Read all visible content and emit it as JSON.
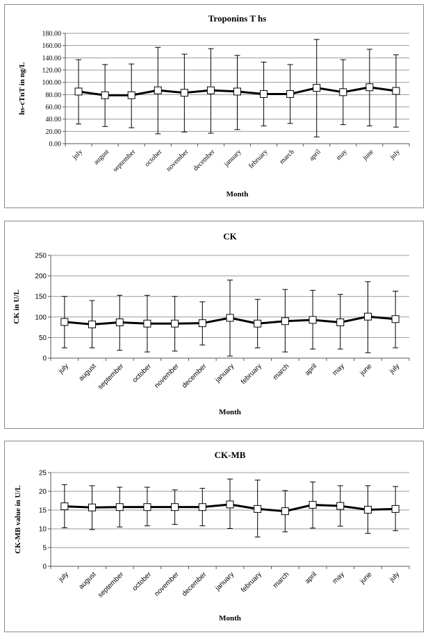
{
  "chart_data": [
    {
      "type": "line",
      "title": "Troponins T hs",
      "xlabel": "Month",
      "ylabel": "hs-cTnT in ng/L",
      "ylim": [
        0,
        180
      ],
      "yticks": [
        "0.00",
        "20.00",
        "40.00",
        "60.00",
        "80.00",
        "100.00",
        "120.00",
        "140.00",
        "160.00",
        "180.00"
      ],
      "grid": true,
      "tick_font": "serif",
      "categories": [
        "july",
        "august",
        "september",
        "october",
        "november",
        "december",
        "january",
        "february",
        "march",
        "april",
        "may",
        "june",
        "july"
      ],
      "values": [
        85,
        79,
        79,
        87,
        83,
        87,
        85,
        81,
        81,
        91,
        84,
        92,
        86
      ],
      "err_high": [
        137,
        129,
        130,
        157,
        146,
        155,
        144,
        133,
        129,
        170,
        137,
        154,
        145
      ],
      "err_low": [
        32,
        28,
        26,
        16,
        19,
        17,
        23,
        29,
        33,
        11,
        31,
        29,
        27
      ]
    },
    {
      "type": "line",
      "title": "CK",
      "xlabel": "Month",
      "ylabel": "CK in U/L",
      "ylim": [
        0,
        250
      ],
      "yticks": [
        "0",
        "50",
        "100",
        "150",
        "200",
        "250"
      ],
      "grid": true,
      "tick_font": "sans",
      "categories": [
        "july",
        "august",
        "september",
        "october",
        "november",
        "december",
        "january",
        "february",
        "march",
        "april",
        "may",
        "june",
        "july"
      ],
      "values": [
        88,
        82,
        87,
        84,
        84,
        85,
        98,
        84,
        90,
        93,
        87,
        101,
        95
      ],
      "err_high": [
        150,
        140,
        153,
        153,
        150,
        137,
        190,
        143,
        167,
        165,
        155,
        186,
        163
      ],
      "err_low": [
        25,
        25,
        19,
        15,
        17,
        32,
        5,
        25,
        15,
        22,
        22,
        13,
        25
      ]
    },
    {
      "type": "line",
      "title": "CK-MB",
      "xlabel": "Month",
      "ylabel": "CK-MB value in U/L",
      "ylim": [
        0,
        25
      ],
      "yticks": [
        "0",
        "5",
        "10",
        "15",
        "20",
        "25"
      ],
      "grid": true,
      "tick_font": "sans",
      "categories": [
        "july",
        "august",
        "september",
        "october",
        "november",
        "december",
        "january",
        "february",
        "march",
        "april",
        "may",
        "june",
        "july"
      ],
      "values": [
        16.0,
        15.7,
        15.8,
        15.8,
        15.8,
        15.8,
        16.5,
        15.3,
        14.7,
        16.4,
        16.1,
        15.1,
        15.3
      ],
      "err_high": [
        21.8,
        21.5,
        21.1,
        21.1,
        20.4,
        20.8,
        23.3,
        23.0,
        20.2,
        22.5,
        21.5,
        21.5,
        21.3
      ],
      "err_low": [
        10.3,
        9.8,
        10.5,
        10.8,
        11.2,
        10.8,
        10.1,
        7.8,
        9.2,
        10.2,
        10.7,
        8.8,
        9.5
      ]
    }
  ]
}
